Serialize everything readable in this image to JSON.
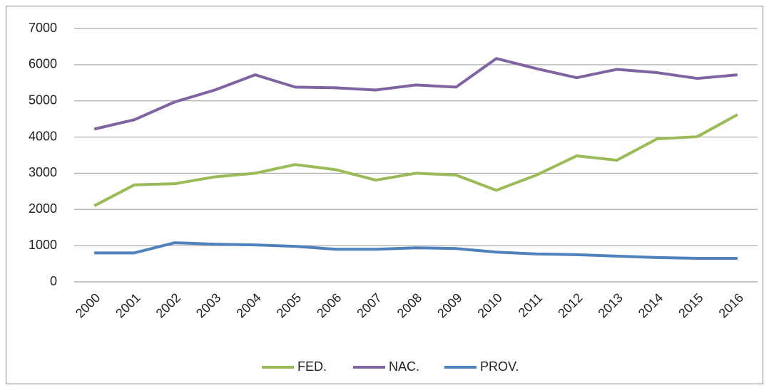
{
  "chart_data": {
    "type": "line",
    "categories": [
      "2000",
      "2001",
      "2002",
      "2003",
      "2004",
      "2005",
      "2006",
      "2007",
      "2008",
      "2009",
      "2010",
      "2011",
      "2012",
      "2013",
      "2014",
      "2015",
      "2016"
    ],
    "series": [
      {
        "name": "FED.",
        "color": "#9bbb59",
        "values": [
          2100,
          2680,
          2710,
          2900,
          3000,
          3240,
          3100,
          2810,
          3000,
          2950,
          2530,
          2950,
          3480,
          3360,
          3950,
          4010,
          4620
        ]
      },
      {
        "name": "NAC.",
        "color": "#8064a2",
        "values": [
          4220,
          4480,
          4970,
          5300,
          5720,
          5380,
          5360,
          5300,
          5440,
          5380,
          6170,
          5890,
          5640,
          5870,
          5780,
          5620,
          5720
        ]
      },
      {
        "name": "PROV.",
        "color": "#4f81bd",
        "values": [
          800,
          800,
          1080,
          1040,
          1020,
          980,
          900,
          900,
          940,
          920,
          820,
          770,
          750,
          710,
          670,
          650,
          650
        ]
      }
    ],
    "ylim": [
      0,
      7000
    ],
    "yticks": [
      0,
      1000,
      2000,
      3000,
      4000,
      5000,
      6000,
      7000
    ],
    "grid": true,
    "legend": "bottom"
  }
}
